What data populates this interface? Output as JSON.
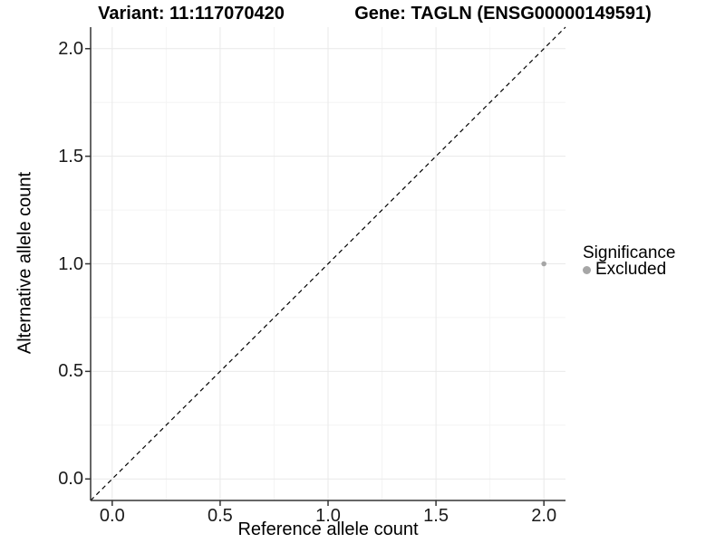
{
  "chart_data": {
    "type": "scatter",
    "title_left": "Variant: 11:117070420",
    "title_right": "Gene: TAGLN (ENSG00000149591)",
    "xlabel": "Reference allele count",
    "ylabel": "Alternative allele count",
    "xlim": [
      -0.1,
      2.1
    ],
    "ylim": [
      -0.1,
      2.1
    ],
    "x_ticks": [
      0.0,
      0.5,
      1.0,
      1.5,
      2.0
    ],
    "y_ticks": [
      0.0,
      0.5,
      1.0,
      1.5,
      2.0
    ],
    "x_tick_labels": [
      "0.0",
      "0.5",
      "1.0",
      "1.5",
      "2.0"
    ],
    "y_tick_labels": [
      "0.0",
      "0.5",
      "1.0",
      "1.5",
      "2.0"
    ],
    "minor_ticks": [
      0.25,
      0.75,
      1.25,
      1.75
    ],
    "grid": true,
    "points": [
      {
        "x": 2.0,
        "y": 1.0,
        "group": "Excluded"
      }
    ],
    "abline": {
      "slope": 1,
      "intercept": 0,
      "style": "dashed"
    },
    "legend": {
      "position": "right",
      "title": "Significance",
      "items": [
        {
          "label": "Excluded",
          "color": "#a6a6a6"
        }
      ]
    },
    "colors": {
      "point": "#a6a6a6",
      "grid_major": "#e9e9e9",
      "grid_minor": "#f4f4f4",
      "axis": "#333333",
      "abline": "#000000",
      "background": "#ffffff"
    }
  }
}
